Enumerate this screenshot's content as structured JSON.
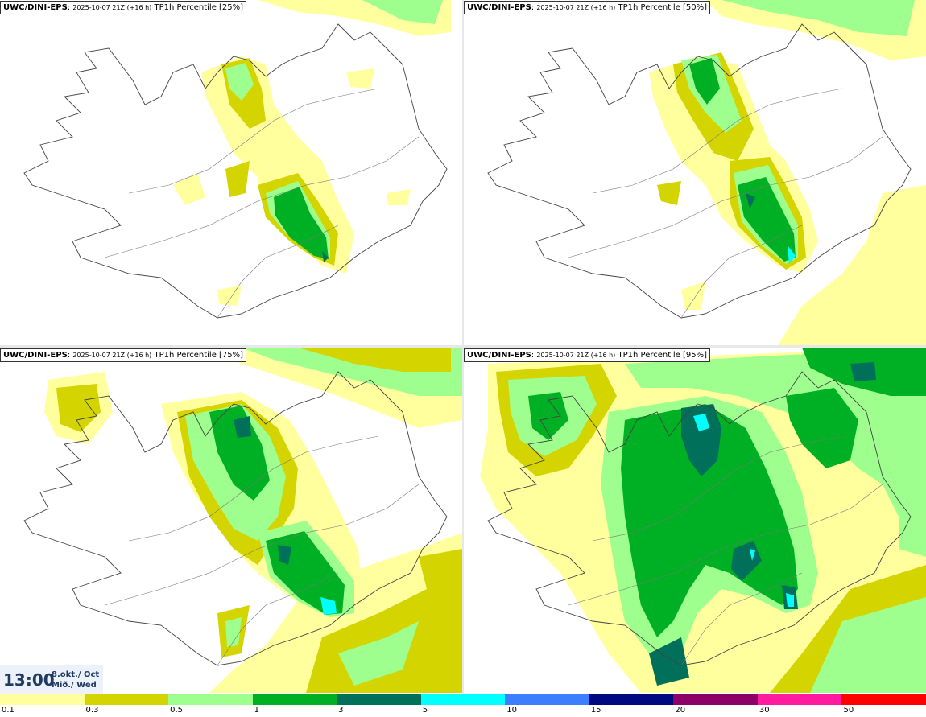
{
  "panels": [
    {
      "model": "UWC/DINI-EPS",
      "run": "2025-10-07 21Z (+16 h)",
      "product": "TP1h Percentile [25%]"
    },
    {
      "model": "UWC/DINI-EPS",
      "run": "2025-10-07 21Z (+16 h)",
      "product": "TP1h Percentile [50%]"
    },
    {
      "model": "UWC/DINI-EPS",
      "run": "2025-10-07 21Z (+16 h)",
      "product": "TP1h Percentile [75%]"
    },
    {
      "model": "UWC/DINI-EPS",
      "run": "2025-10-07 21Z (+16 h)",
      "product": "TP1h Percentile [95%]"
    }
  ],
  "valid_time": {
    "time": "13:00",
    "date": "8.okt./ Oct",
    "weekday": "Mið./ Wed"
  },
  "legend": {
    "colors": [
      "#ffff9e",
      "#d4d400",
      "#9eff8e",
      "#00b024",
      "#00705a",
      "#00ffff",
      "#3d7eff",
      "#000a80",
      "#8c0068",
      "#ff1aa0",
      "#ff0000"
    ],
    "labels": [
      "0.1",
      "0.3",
      "0.5",
      "1",
      "3",
      "5",
      "10",
      "15",
      "20",
      "30",
      "50"
    ]
  }
}
